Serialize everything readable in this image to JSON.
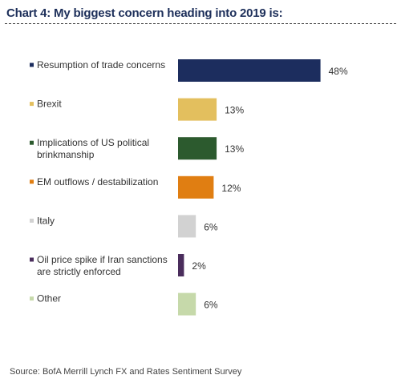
{
  "header": {
    "title": "Chart 4: My biggest concern heading into 2019 is:"
  },
  "footer": {
    "source": "Source: BofA Merrill Lynch FX and Rates Sentiment Survey"
  },
  "chart_data": {
    "type": "bar",
    "orientation": "horizontal",
    "title": "Chart 4: My biggest concern heading into 2019 is:",
    "categories": [
      [
        "Resumption of trade concerns"
      ],
      [
        "Brexit"
      ],
      [
        "Implications of US political",
        "brinkmanship"
      ],
      [
        "EM outflows / destabilization"
      ],
      [
        "Italy"
      ],
      [
        "Oil price spike if Iran sanctions",
        "are strictly enforced"
      ],
      [
        "Other"
      ]
    ],
    "values": [
      48,
      13,
      13,
      12,
      6,
      2,
      6
    ],
    "value_labels": [
      "48%",
      "13%",
      "13%",
      "12%",
      "6%",
      "2%",
      "6%"
    ],
    "colors": [
      "#1c2d5e",
      "#e3bf5e",
      "#2c5a2e",
      "#e07e12",
      "#d2d2d2",
      "#4a2d5c",
      "#c6d9aa"
    ],
    "unit": "%",
    "grid": false,
    "legend": "inline markers"
  }
}
